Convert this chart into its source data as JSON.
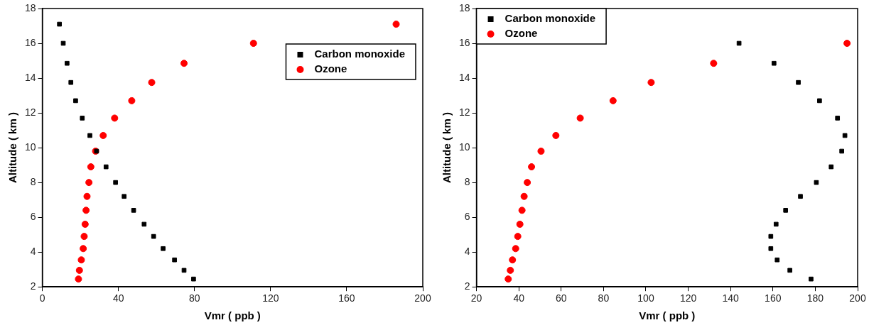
{
  "chart_data": [
    {
      "type": "scatter",
      "xlabel": "Vmr ( ppb )",
      "ylabel": "Altitude ( km )",
      "xlim": [
        0,
        200
      ],
      "xticks": [
        0,
        40,
        80,
        120,
        160,
        200
      ],
      "ylim": [
        2,
        18
      ],
      "yticks": [
        2,
        4,
        6,
        8,
        10,
        12,
        14,
        16,
        18
      ],
      "grid": false,
      "legend": "top right",
      "series": [
        {
          "name": "Carbon monoxide",
          "color": "#000000",
          "marker": "square",
          "x": [
            9,
            11,
            13,
            15,
            17.5,
            21,
            25,
            28.5,
            33.5,
            38.5,
            43,
            48,
            53.5,
            58.5,
            63.5,
            69.5,
            74.5,
            79.5
          ],
          "values": [
            17.1,
            16,
            14.85,
            13.75,
            12.7,
            11.7,
            10.7,
            9.8,
            8.9,
            8,
            7.2,
            6.4,
            5.6,
            4.9,
            4.2,
            3.55,
            2.95,
            2.45
          ]
        },
        {
          "name": "Ozone",
          "color": "#ff0000",
          "marker": "circle",
          "x": [
            186,
            111,
            74.5,
            57.5,
            47,
            38,
            32,
            28,
            25.5,
            24.5,
            23.5,
            23,
            22.5,
            22,
            21.5,
            20.5,
            19.5,
            19
          ],
          "values": [
            17.1,
            16,
            14.85,
            13.75,
            12.7,
            11.7,
            10.7,
            9.8,
            8.9,
            8,
            7.2,
            6.4,
            5.6,
            4.9,
            4.2,
            3.55,
            2.95,
            2.45
          ]
        }
      ]
    },
    {
      "type": "scatter",
      "xlabel": "Vmr ( ppb )",
      "ylabel": "Altitude ( km )",
      "xlim": [
        20,
        200
      ],
      "xticks": [
        20,
        40,
        60,
        80,
        100,
        120,
        140,
        160,
        180,
        200
      ],
      "ylim": [
        2,
        18
      ],
      "yticks": [
        2,
        4,
        6,
        8,
        10,
        12,
        14,
        16,
        18
      ],
      "grid": false,
      "legend": "top left",
      "series": [
        {
          "name": "Carbon monoxide",
          "color": "#000000",
          "marker": "square",
          "x": [
            144,
            160.5,
            172,
            182,
            190.5,
            194,
            192.5,
            187.5,
            180.5,
            173,
            166,
            161.5,
            159,
            159,
            162,
            168,
            178
          ],
          "values": [
            16,
            14.85,
            13.75,
            12.7,
            11.7,
            10.7,
            9.8,
            8.9,
            8,
            7.2,
            6.4,
            5.6,
            4.9,
            4.2,
            3.55,
            2.95,
            2.45
          ]
        },
        {
          "name": "Ozone",
          "color": "#ff0000",
          "marker": "circle",
          "x": [
            195,
            132,
            102.5,
            84.5,
            69,
            57.5,
            50.5,
            46,
            44,
            42.5,
            41.5,
            40.5,
            39.5,
            38.5,
            37,
            36,
            35
          ],
          "values": [
            16,
            14.85,
            13.75,
            12.7,
            11.7,
            10.7,
            9.8,
            8.9,
            8,
            7.2,
            6.4,
            5.6,
            4.9,
            4.2,
            3.55,
            2.95,
            2.45
          ]
        }
      ]
    }
  ]
}
